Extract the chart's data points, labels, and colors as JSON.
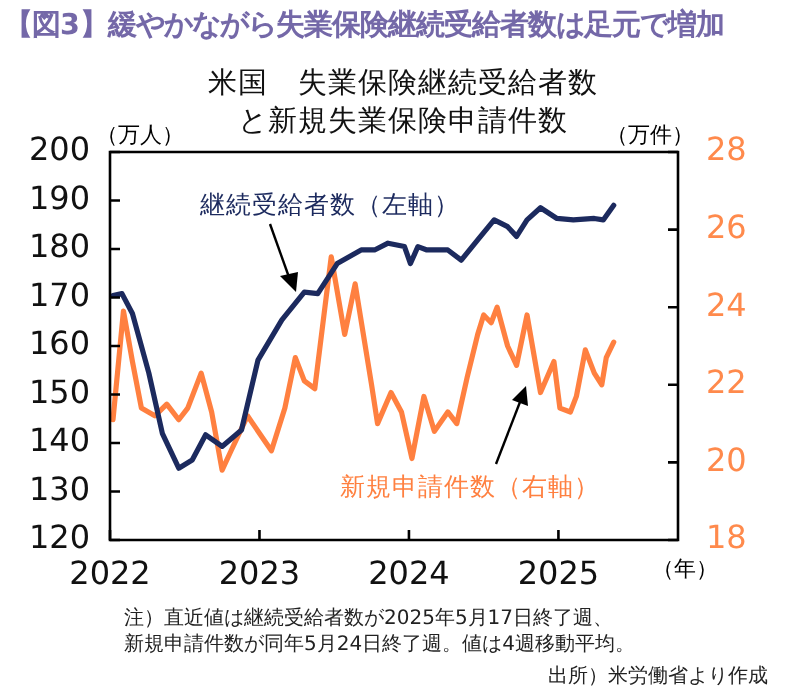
{
  "chart_data": {
    "type": "line",
    "title": "【図3】緩やかながら失業保険継続受給者数は足元で増加",
    "subtitle": "米国　失業保険継続受給者数と新規失業保険申請件数",
    "ylabel": "（万人）",
    "y2label": "（万件）",
    "xlabel": "（年）",
    "xlim": [
      2022,
      2025.8
    ],
    "xticks": [
      2022,
      2023,
      2024,
      2025
    ],
    "ylim": [
      120,
      200
    ],
    "yticks": [
      120,
      130,
      140,
      150,
      160,
      170,
      180,
      190,
      200
    ],
    "y2lim": [
      18,
      28
    ],
    "y2ticks": [
      18,
      20,
      22,
      24,
      26,
      28
    ],
    "grid": false,
    "legend": false,
    "marker": "none",
    "line_style": "solid",
    "series": [
      {
        "name": "継続受給者数（左軸）",
        "color": "#1c2a5e",
        "x": [
          2022.02,
          2022.08,
          2022.15,
          2022.26,
          2022.35,
          2022.46,
          2022.55,
          2022.64,
          2022.75,
          2022.88,
          2022.99,
          2023.15,
          2023.3,
          2023.39,
          2023.52,
          2023.68,
          2023.77,
          2023.86,
          2023.97,
          2024.01,
          2024.06,
          2024.12,
          2024.26,
          2024.35,
          2024.46,
          2024.57,
          2024.66,
          2024.72,
          2024.79,
          2024.88,
          2024.99,
          2025.1,
          2025.24,
          2025.3,
          2025.37
        ],
        "values": [
          170.4,
          170.8,
          166.7,
          154.4,
          142,
          134.8,
          136.5,
          141.7,
          139.3,
          142.7,
          157.1,
          165.4,
          171.1,
          170.8,
          177,
          179.8,
          179.8,
          181.2,
          180.5,
          177,
          180.5,
          179.8,
          179.8,
          177.7,
          181.9,
          186,
          184.6,
          182.6,
          186,
          188.5,
          186.3,
          186,
          186.3,
          186,
          189
        ]
      },
      {
        "name": "新規申請件数（右軸）",
        "color": "#ff8040",
        "axis": "y2",
        "x": [
          2022.02,
          2022.09,
          2022.15,
          2022.21,
          2022.3,
          2022.38,
          2022.46,
          2022.52,
          2022.61,
          2022.68,
          2022.75,
          2022.81,
          2022.92,
          2023.08,
          2023.17,
          2023.24,
          2023.3,
          2023.37,
          2023.48,
          2023.57,
          2023.64,
          2023.75,
          2023.79,
          2023.88,
          2023.95,
          2024.02,
          2024.1,
          2024.17,
          2024.26,
          2024.32,
          2024.39,
          2024.46,
          2024.5,
          2024.55,
          2024.59,
          2024.66,
          2024.72,
          2024.79,
          2024.88,
          2024.97,
          2025.01,
          2025.08,
          2025.12,
          2025.18,
          2025.24,
          2025.29,
          2025.32,
          2025.37
        ],
        "values": [
          21.1,
          23.9,
          22.6,
          21.4,
          21.2,
          21.5,
          21.1,
          21.4,
          22.3,
          21.3,
          19.8,
          20.3,
          21.2,
          20.3,
          21.4,
          22.7,
          22.1,
          21.9,
          25.3,
          23.3,
          24.6,
          22.0,
          21.0,
          21.8,
          21.3,
          20.1,
          21.7,
          20.8,
          21.3,
          21.0,
          22.2,
          23.3,
          23.8,
          23.6,
          24.0,
          23.0,
          22.5,
          23.8,
          21.8,
          22.6,
          21.4,
          21.3,
          21.7,
          22.9,
          22.3,
          22.0,
          22.7,
          23.1
        ]
      }
    ],
    "annotations": [
      "注）直近値は継続受給者数が2025年5月17日終了週、",
      "新規申請件数が同年5月24日終了週。値は4週移動平均。",
      "出所）米労働省より作成"
    ]
  }
}
